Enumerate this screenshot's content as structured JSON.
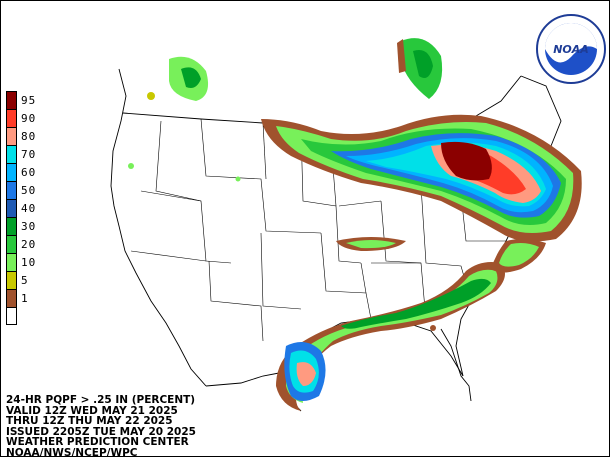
{
  "caption": {
    "line1": "24-HR PQPF > .25 IN (PERCENT)",
    "line2": "VALID 12Z WED MAY 21 2025",
    "line3": "THRU 12Z THU MAY 22 2025",
    "line4": "ISSUED 2205Z TUE MAY 20 2025",
    "line5": "WEATHER PREDICTION CENTER",
    "line6": "NOAA/NWS/NCEP/WPC"
  },
  "legend": [
    {
      "label": "95",
      "color": "#8b0000"
    },
    {
      "label": "90",
      "color": "#ff3c28"
    },
    {
      "label": "80",
      "color": "#ff9a80"
    },
    {
      "label": "70",
      "color": "#00e0e8"
    },
    {
      "label": "60",
      "color": "#00b4ff"
    },
    {
      "label": "50",
      "color": "#1e78e6"
    },
    {
      "label": "40",
      "color": "#1e5ab4"
    },
    {
      "label": "30",
      "color": "#00a028"
    },
    {
      "label": "20",
      "color": "#28c83c"
    },
    {
      "label": "10",
      "color": "#78f05a"
    },
    {
      "label": "5",
      "color": "#c8c800"
    },
    {
      "label": "1",
      "color": "#a0522d"
    },
    {
      "label": "",
      "color": "#ffffff"
    }
  ],
  "logo": {
    "text": "NOAA"
  }
}
